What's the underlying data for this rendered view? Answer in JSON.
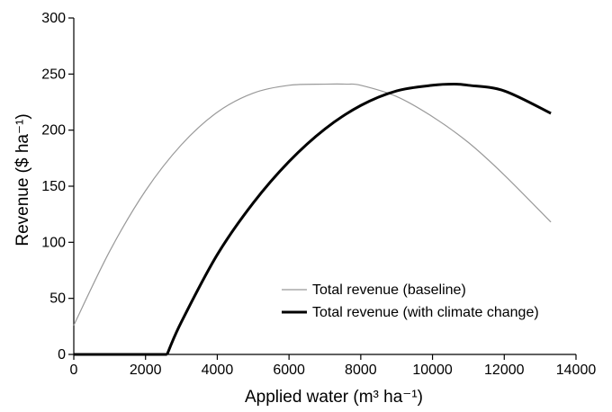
{
  "chart_data": {
    "type": "line",
    "xlabel": "Applied water (m³ ha⁻¹)",
    "ylabel": "Revenue ($ ha⁻¹)",
    "xlim": [
      0,
      14000
    ],
    "ylim": [
      0,
      300
    ],
    "xticks": [
      0,
      2000,
      4000,
      6000,
      8000,
      10000,
      12000,
      14000
    ],
    "yticks": [
      0,
      50,
      100,
      150,
      200,
      250,
      300
    ],
    "xtick_labels": [
      "0",
      "2000",
      "4000",
      "6000",
      "8000",
      "10000",
      "12000",
      "14000"
    ],
    "ytick_labels": [
      "0",
      "50",
      "100",
      "150",
      "200",
      "250",
      "300"
    ],
    "grid": false,
    "legend_position": "bottom-right",
    "series": [
      {
        "name": "Total revenue (baseline)",
        "color": "#999999",
        "style": "thin",
        "x": [
          0,
          1000,
          2000,
          3000,
          4000,
          5000,
          6000,
          7000,
          7600,
          8000,
          9000,
          10000,
          11000,
          12000,
          13300
        ],
        "y": [
          26,
          92,
          146,
          187,
          216,
          233,
          240,
          241,
          241,
          240,
          230,
          212,
          189,
          160,
          118
        ]
      },
      {
        "name": "Total revenue (with climate change)",
        "color": "#000000",
        "style": "thick",
        "x": [
          0,
          2600,
          3000,
          4000,
          5000,
          6000,
          7000,
          8000,
          9000,
          10000,
          10600,
          11000,
          12000,
          13300
        ],
        "y": [
          0,
          0,
          29,
          89,
          135,
          172,
          201,
          222,
          235,
          240,
          241,
          240,
          235,
          215
        ]
      }
    ]
  }
}
